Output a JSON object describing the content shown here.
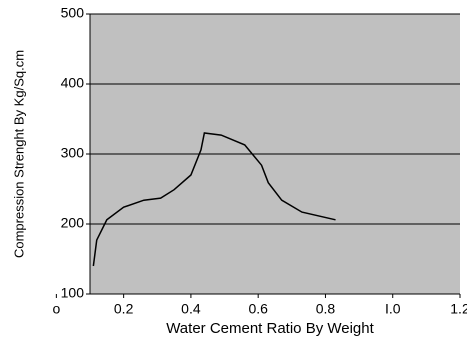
{
  "chart_data": {
    "type": "line",
    "x_label": "Water Cement Ratio By Weight",
    "y_label": "Compression Strenght By Kg/Sq.cm",
    "x": [
      0.11,
      0.12,
      0.15,
      0.2,
      0.26,
      0.31,
      0.35,
      0.4,
      0.43,
      0.44,
      0.49,
      0.56,
      0.61,
      0.63,
      0.67,
      0.73,
      0.83
    ],
    "series": [
      {
        "color": "#000000",
        "values": [
          140,
          177,
          206,
          224,
          234,
          237,
          249,
          270,
          306,
          330,
          327,
          313,
          284,
          259,
          234,
          217,
          206
        ]
      }
    ],
    "xlim": [
      0.1,
      1.2
    ],
    "xticks": [
      {
        "value": 0,
        "label": "o"
      },
      0.2,
      0.4,
      0.6,
      0.8,
      {
        "value": 1.0,
        "label": "I.0"
      },
      1.2
    ],
    "ylim": [
      100,
      500
    ],
    "yticks": [
      100,
      200,
      300,
      400,
      500
    ],
    "grid": true,
    "background": "#c0c0c0"
  }
}
